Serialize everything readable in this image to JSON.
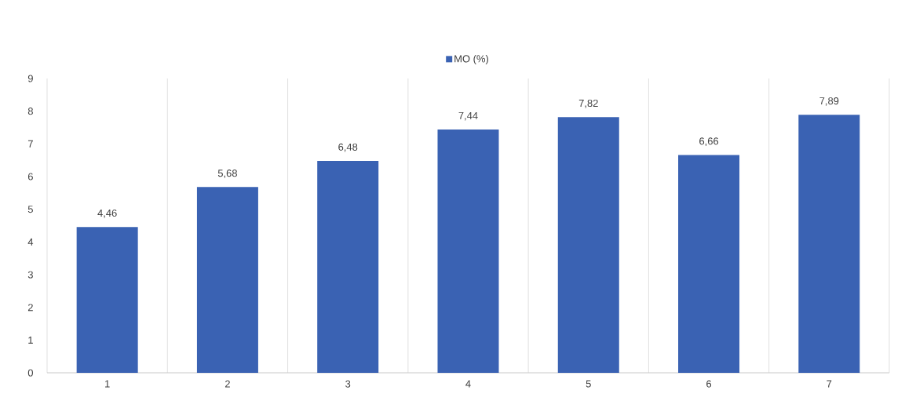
{
  "chart_data": {
    "type": "bar",
    "categories": [
      "1",
      "2",
      "3",
      "4",
      "5",
      "6",
      "7"
    ],
    "series": [
      {
        "name": "MO (%)",
        "color": "#3a62b3",
        "values": [
          4.46,
          5.68,
          6.48,
          7.44,
          7.82,
          6.66,
          7.89
        ],
        "value_labels": [
          "4,46",
          "5,68",
          "6,48",
          "7,44",
          "7,82",
          "6,66",
          "7,89"
        ]
      }
    ],
    "ylim": [
      0,
      9
    ],
    "yticks": [
      0,
      1,
      2,
      3,
      4,
      5,
      6,
      7,
      8,
      9
    ],
    "grid": "x",
    "legend": "top"
  }
}
